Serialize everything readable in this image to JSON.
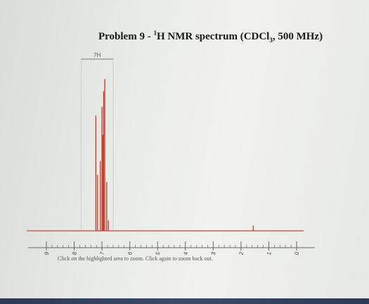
{
  "title": {
    "prefix": "Problem 9 - ",
    "sup": "1",
    "middle": "H NMR spectrum (CDCl",
    "sub": "3",
    "suffix": ", 500 MHz)"
  },
  "hint": "Click on the highlighted area to zoom. Click again to zoom back out.",
  "colors": {
    "spectrum": "#c0392b",
    "baseline": "#c9473a",
    "axis": "#666666",
    "integral": "#555555"
  },
  "chart_data": {
    "type": "line",
    "xlabel": "",
    "ylabel": "",
    "xlim": [
      9,
      0
    ],
    "x_reversed": true,
    "ticks": [
      "9",
      "8",
      "7",
      "6",
      "5",
      "4",
      "3",
      "2",
      "1",
      "0"
    ],
    "integrals": [
      {
        "label": "7H",
        "from_ppm": 7.4,
        "to_ppm": 6.8
      }
    ],
    "peaks": [
      {
        "ppm": 7.22,
        "height": 0.66
      },
      {
        "ppm": 7.16,
        "height": 0.32
      },
      {
        "ppm": 7.06,
        "height": 0.4
      },
      {
        "ppm": 7.0,
        "height": 0.71
      },
      {
        "ppm": 6.97,
        "height": 0.55
      },
      {
        "ppm": 6.94,
        "height": 0.8
      },
      {
        "ppm": 6.9,
        "height": 0.87
      },
      {
        "ppm": 6.83,
        "height": 0.28
      },
      {
        "ppm": 6.77,
        "height": 0.06
      },
      {
        "ppm": 1.56,
        "height": 0.03
      }
    ]
  }
}
